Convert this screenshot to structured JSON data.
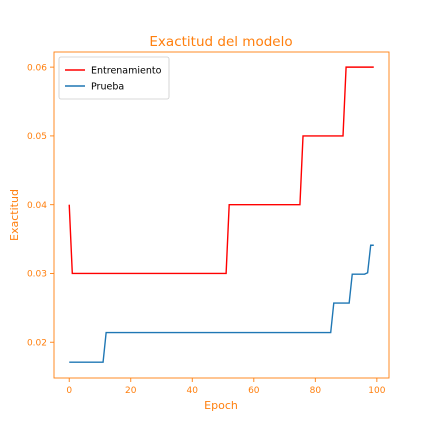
{
  "chart_data": {
    "type": "line",
    "title": "Exactitud del modelo",
    "xlabel": "Epoch",
    "ylabel": "Exactitud",
    "xlim": [
      -4.95,
      103.95
    ],
    "ylim": [
      0.0148,
      0.0622
    ],
    "xticks": [
      0,
      20,
      40,
      60,
      80,
      100
    ],
    "yticks": [
      0.02,
      0.03,
      0.04,
      0.05,
      0.06
    ],
    "xtick_labels": [
      "0",
      "20",
      "40",
      "60",
      "80",
      "100"
    ],
    "ytick_labels": [
      "0.02",
      "0.03",
      "0.04",
      "0.05",
      "0.06"
    ],
    "grid": false,
    "legend_position": "top-left",
    "accent_color": "#ff7f0e",
    "series": [
      {
        "name": "Entrenamiento",
        "color": "#ff0000",
        "points": [
          [
            0,
            0.04
          ],
          [
            1,
            0.03
          ],
          [
            51,
            0.03
          ],
          [
            52,
            0.04
          ],
          [
            75,
            0.04
          ],
          [
            76,
            0.05
          ],
          [
            89,
            0.05
          ],
          [
            90,
            0.06
          ],
          [
            99,
            0.06
          ]
        ]
      },
      {
        "name": "Prueba",
        "color": "#1f77b4",
        "points": [
          [
            0,
            0.0171
          ],
          [
            11,
            0.0171
          ],
          [
            12,
            0.0214
          ],
          [
            85,
            0.0214
          ],
          [
            86,
            0.0257
          ],
          [
            91,
            0.0257
          ],
          [
            92,
            0.0299
          ],
          [
            96,
            0.0299
          ],
          [
            97,
            0.0301
          ],
          [
            98,
            0.0341
          ],
          [
            99,
            0.0341
          ]
        ]
      }
    ]
  }
}
